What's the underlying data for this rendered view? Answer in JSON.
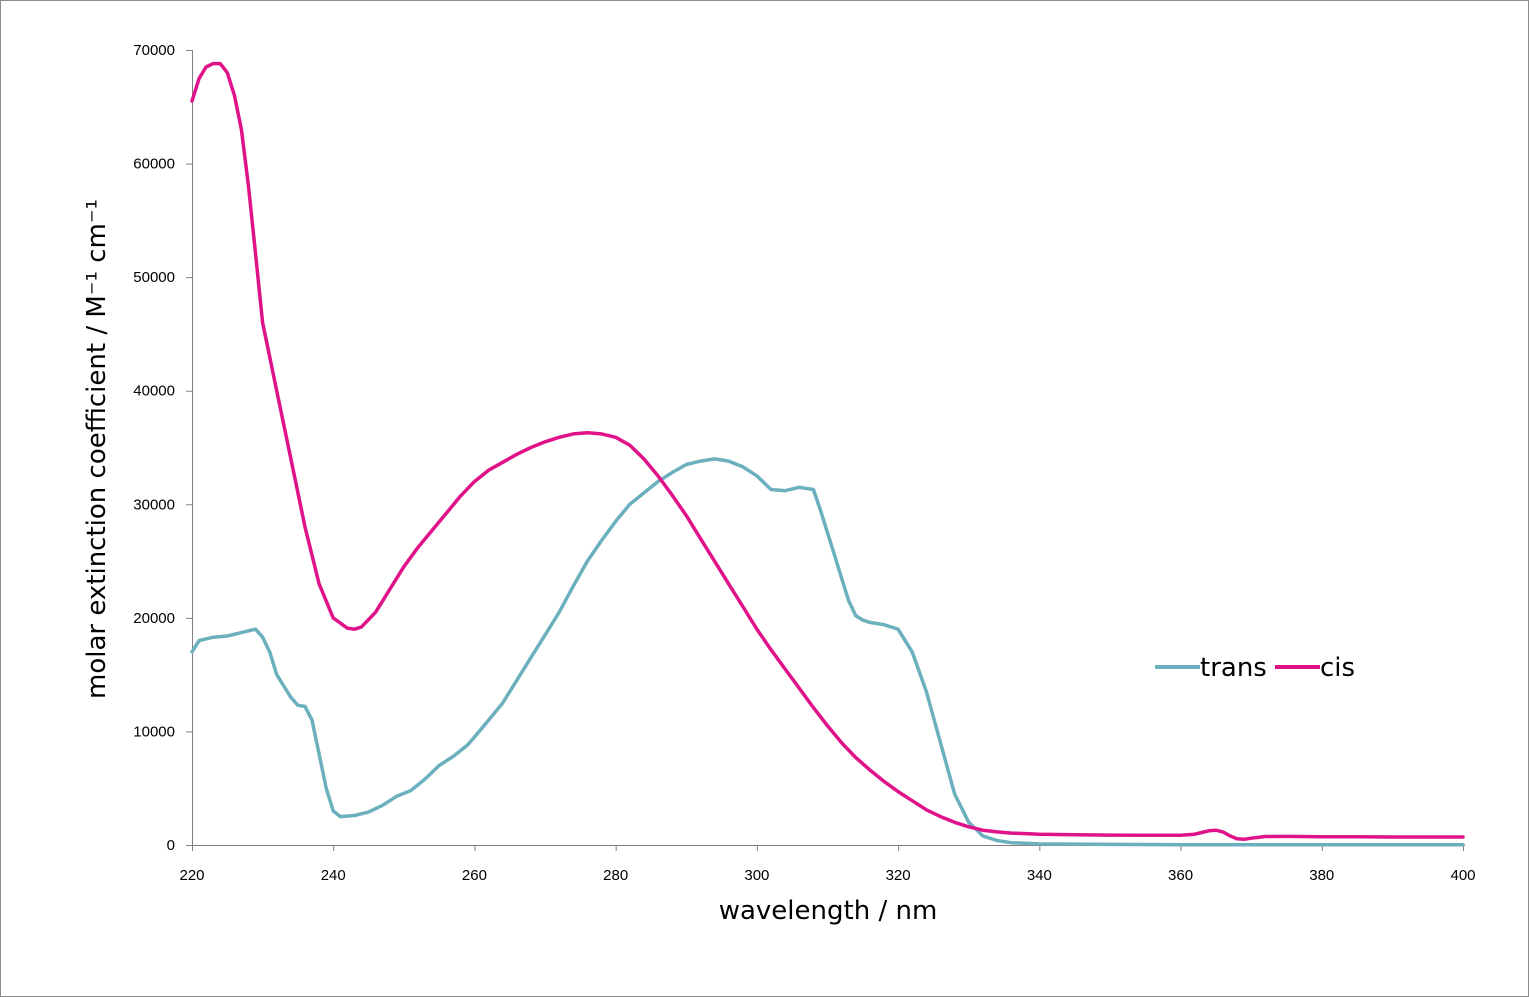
{
  "chart_data": {
    "type": "line",
    "xlabel": "wavelength / nm",
    "ylabel": "molar extinction coefficient / M⁻¹ cm⁻¹",
    "xlim": [
      220,
      400
    ],
    "ylim": [
      0,
      70000
    ],
    "xticks": [
      "220",
      "240",
      "260",
      "280",
      "300",
      "320",
      "340",
      "360",
      "380",
      "400"
    ],
    "yticks": [
      "0",
      "10000",
      "20000",
      "30000",
      "40000",
      "50000",
      "60000",
      "70000"
    ],
    "grid": false,
    "legend_position": "right",
    "series": [
      {
        "name": "trans",
        "color": "#6bb0bd",
        "points": [
          [
            220,
            17000
          ],
          [
            221,
            18000
          ],
          [
            223,
            18300
          ],
          [
            225,
            18400
          ],
          [
            227,
            18700
          ],
          [
            229,
            19000
          ],
          [
            230,
            18300
          ],
          [
            231,
            17000
          ],
          [
            232,
            15000
          ],
          [
            233,
            14000
          ],
          [
            234,
            13000
          ],
          [
            235,
            12300
          ],
          [
            236,
            12200
          ],
          [
            237,
            11000
          ],
          [
            238,
            8000
          ],
          [
            239,
            5000
          ],
          [
            240,
            3000
          ],
          [
            241,
            2500
          ],
          [
            243,
            2600
          ],
          [
            245,
            2900
          ],
          [
            247,
            3500
          ],
          [
            249,
            4300
          ],
          [
            251,
            4800
          ],
          [
            253,
            5800
          ],
          [
            255,
            7000
          ],
          [
            257,
            7800
          ],
          [
            259,
            8800
          ],
          [
            260,
            9500
          ],
          [
            262,
            11000
          ],
          [
            264,
            12500
          ],
          [
            266,
            14500
          ],
          [
            268,
            16500
          ],
          [
            270,
            18500
          ],
          [
            272,
            20500
          ],
          [
            274,
            22800
          ],
          [
            276,
            25000
          ],
          [
            278,
            26800
          ],
          [
            280,
            28500
          ],
          [
            282,
            30000
          ],
          [
            284,
            31000
          ],
          [
            286,
            32000
          ],
          [
            288,
            32800
          ],
          [
            290,
            33500
          ],
          [
            292,
            33800
          ],
          [
            294,
            34000
          ],
          [
            296,
            33800
          ],
          [
            298,
            33300
          ],
          [
            300,
            32500
          ],
          [
            302,
            31300
          ],
          [
            304,
            31200
          ],
          [
            306,
            31500
          ],
          [
            308,
            31300
          ],
          [
            309,
            29500
          ],
          [
            310,
            27500
          ],
          [
            311,
            25500
          ],
          [
            312,
            23500
          ],
          [
            313,
            21500
          ],
          [
            314,
            20200
          ],
          [
            315,
            19800
          ],
          [
            316,
            19600
          ],
          [
            318,
            19400
          ],
          [
            320,
            19000
          ],
          [
            322,
            17000
          ],
          [
            324,
            13500
          ],
          [
            326,
            9000
          ],
          [
            328,
            4500
          ],
          [
            330,
            2000
          ],
          [
            332,
            800
          ],
          [
            334,
            400
          ],
          [
            336,
            200
          ],
          [
            340,
            100
          ],
          [
            350,
            50
          ],
          [
            360,
            30
          ],
          [
            370,
            20
          ],
          [
            380,
            20
          ],
          [
            390,
            20
          ],
          [
            400,
            20
          ]
        ]
      },
      {
        "name": "cis",
        "color": "#e0128a",
        "points": [
          [
            220,
            65500
          ],
          [
            221,
            67500
          ],
          [
            222,
            68500
          ],
          [
            223,
            68800
          ],
          [
            224,
            68800
          ],
          [
            225,
            68000
          ],
          [
            226,
            66000
          ],
          [
            227,
            63000
          ],
          [
            228,
            58000
          ],
          [
            229,
            52000
          ],
          [
            230,
            46000
          ],
          [
            232,
            40000
          ],
          [
            234,
            34000
          ],
          [
            236,
            28000
          ],
          [
            238,
            23000
          ],
          [
            240,
            20000
          ],
          [
            242,
            19100
          ],
          [
            243,
            19000
          ],
          [
            244,
            19200
          ],
          [
            246,
            20500
          ],
          [
            248,
            22500
          ],
          [
            250,
            24500
          ],
          [
            252,
            26200
          ],
          [
            254,
            27700
          ],
          [
            256,
            29200
          ],
          [
            258,
            30700
          ],
          [
            260,
            32000
          ],
          [
            262,
            33000
          ],
          [
            264,
            33700
          ],
          [
            266,
            34400
          ],
          [
            268,
            35000
          ],
          [
            270,
            35500
          ],
          [
            272,
            35900
          ],
          [
            274,
            36200
          ],
          [
            276,
            36300
          ],
          [
            278,
            36200
          ],
          [
            280,
            35900
          ],
          [
            282,
            35200
          ],
          [
            284,
            34000
          ],
          [
            286,
            32500
          ],
          [
            288,
            30800
          ],
          [
            290,
            29000
          ],
          [
            292,
            27000
          ],
          [
            294,
            25000
          ],
          [
            296,
            23000
          ],
          [
            298,
            21000
          ],
          [
            300,
            19000
          ],
          [
            302,
            17200
          ],
          [
            304,
            15500
          ],
          [
            306,
            13800
          ],
          [
            308,
            12100
          ],
          [
            310,
            10500
          ],
          [
            312,
            9000
          ],
          [
            314,
            7700
          ],
          [
            316,
            6600
          ],
          [
            318,
            5600
          ],
          [
            320,
            4700
          ],
          [
            322,
            3900
          ],
          [
            324,
            3100
          ],
          [
            326,
            2500
          ],
          [
            328,
            2000
          ],
          [
            330,
            1600
          ],
          [
            332,
            1300
          ],
          [
            334,
            1150
          ],
          [
            336,
            1050
          ],
          [
            338,
            1000
          ],
          [
            340,
            950
          ],
          [
            345,
            900
          ],
          [
            350,
            870
          ],
          [
            355,
            850
          ],
          [
            360,
            850
          ],
          [
            362,
            950
          ],
          [
            363,
            1100
          ],
          [
            364,
            1250
          ],
          [
            365,
            1300
          ],
          [
            366,
            1150
          ],
          [
            367,
            800
          ],
          [
            368,
            550
          ],
          [
            369,
            500
          ],
          [
            370,
            600
          ],
          [
            372,
            750
          ],
          [
            375,
            760
          ],
          [
            380,
            730
          ],
          [
            385,
            720
          ],
          [
            390,
            700
          ],
          [
            395,
            700
          ],
          [
            400,
            700
          ]
        ]
      }
    ]
  }
}
